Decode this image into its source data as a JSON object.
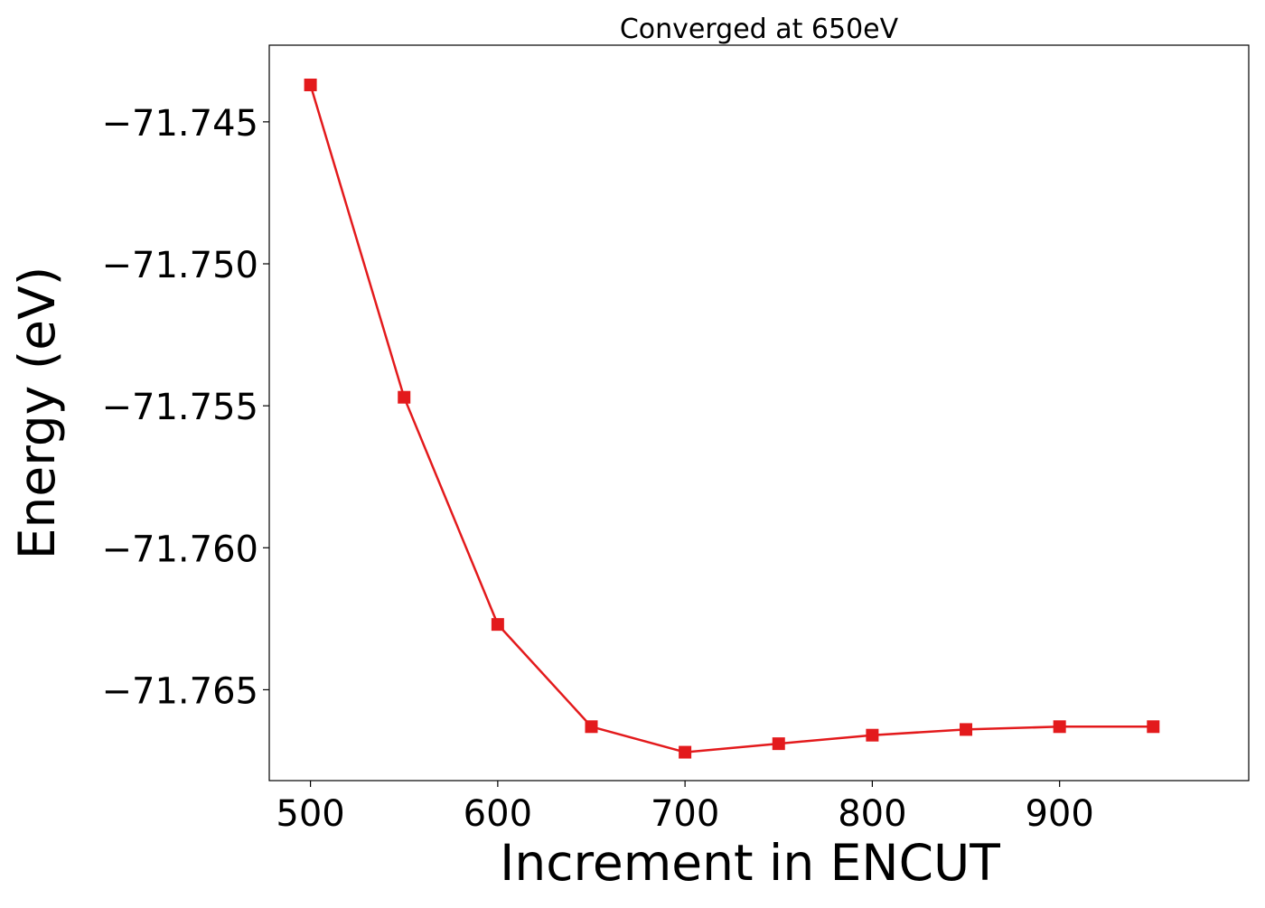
{
  "chart_data": {
    "type": "line",
    "title": "Converged at 650eV",
    "xlabel": "Increment in ENCUT",
    "ylabel": "Energy (eV)",
    "x": [
      500,
      550,
      600,
      650,
      700,
      750,
      800,
      850,
      900,
      950
    ],
    "series": [
      {
        "color": "#e31a1c",
        "marker": "square",
        "values": [
          -71.7437,
          -71.7547,
          -71.7627,
          -71.7663,
          -71.7672,
          -71.7669,
          -71.7666,
          -71.7664,
          -71.7663,
          -71.7663
        ]
      }
    ],
    "xlim": [
      478,
      1001
    ],
    "ylim": [
      -71.7682,
      -71.7423
    ],
    "xticks": [
      500,
      600,
      700,
      800,
      900
    ],
    "xtick_labels": [
      "500",
      "600",
      "700",
      "800",
      "900"
    ],
    "yticks": [
      -71.745,
      -71.75,
      -71.755,
      -71.76,
      -71.765
    ],
    "ytick_labels": [
      "−71.745",
      "−71.750",
      "−71.755",
      "−71.760",
      "−71.765"
    ],
    "grid": false,
    "legend": "none"
  }
}
